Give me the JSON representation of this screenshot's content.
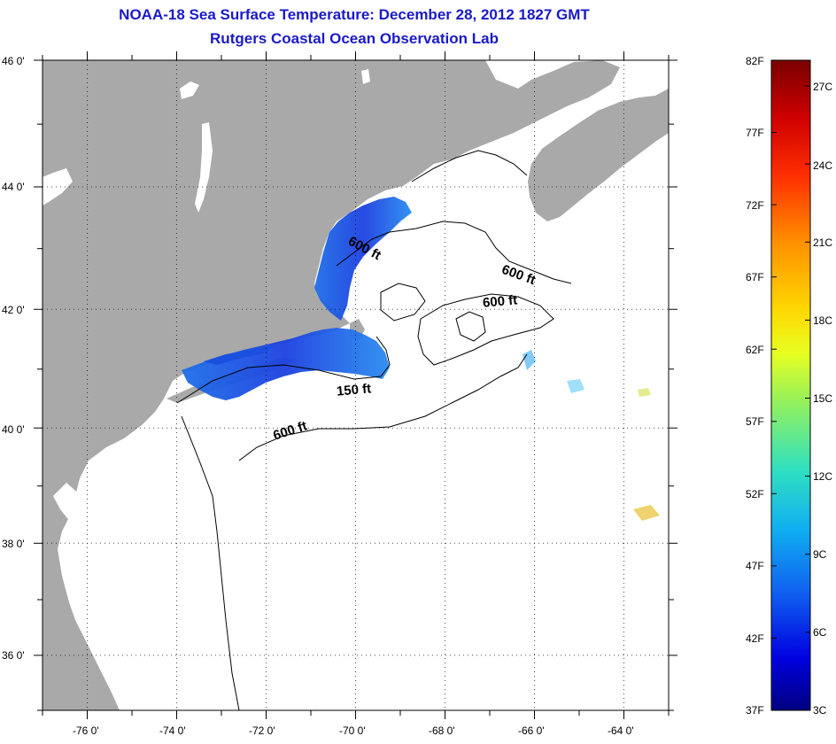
{
  "title": "NOAA-18 Sea Surface Temperature:  December 28, 2012 1827 GMT",
  "subtitle": "Rutgers Coastal Ocean Observation Lab",
  "lat_ticks": [
    "46 0'",
    "44 0'",
    "42 0'",
    "40 0'",
    "38 0'",
    "36 0'"
  ],
  "lon_ticks": [
    "-76 0'",
    "-74 0'",
    "-72 0'",
    "-70 0'",
    "-68 0'",
    "-66 0'",
    "-64 0'"
  ],
  "lat_values": [
    46,
    44,
    42,
    40,
    38,
    36
  ],
  "lon_values": [
    -76,
    -74,
    -72,
    -70,
    -68,
    -66,
    -64
  ],
  "extent": {
    "lon_min": -77,
    "lon_max": -63,
    "lat_min": 35,
    "lat_max": 46
  },
  "colorbar": {
    "fahrenheit_labels": [
      "82F",
      "77F",
      "72F",
      "67F",
      "62F",
      "57F",
      "52F",
      "47F",
      "42F",
      "37F"
    ],
    "celsius_labels": [
      "27C",
      "24C",
      "21C",
      "18C",
      "15C",
      "12C",
      "9C",
      "6C",
      "3C"
    ],
    "min_label_c": "3C",
    "colors": [
      "#7a0000",
      "#d00000",
      "#ff3000",
      "#ff9000",
      "#ffd500",
      "#e8ff20",
      "#90f060",
      "#30e0c0",
      "#10b0f0",
      "#1060f0",
      "#0000e0",
      "#000080"
    ]
  },
  "contour_labels": [
    {
      "text": "600 ft",
      "rotation": 28
    },
    {
      "text": "600 ft",
      "rotation": 20
    },
    {
      "text": "600 ft",
      "rotation": -5
    },
    {
      "text": "150 ft",
      "rotation": -5
    },
    {
      "text": "600 ft",
      "rotation": -18
    }
  ],
  "colors": {
    "land": "#a9a9a9",
    "ocean": "#ffffff",
    "title": "#1a1ac8"
  }
}
